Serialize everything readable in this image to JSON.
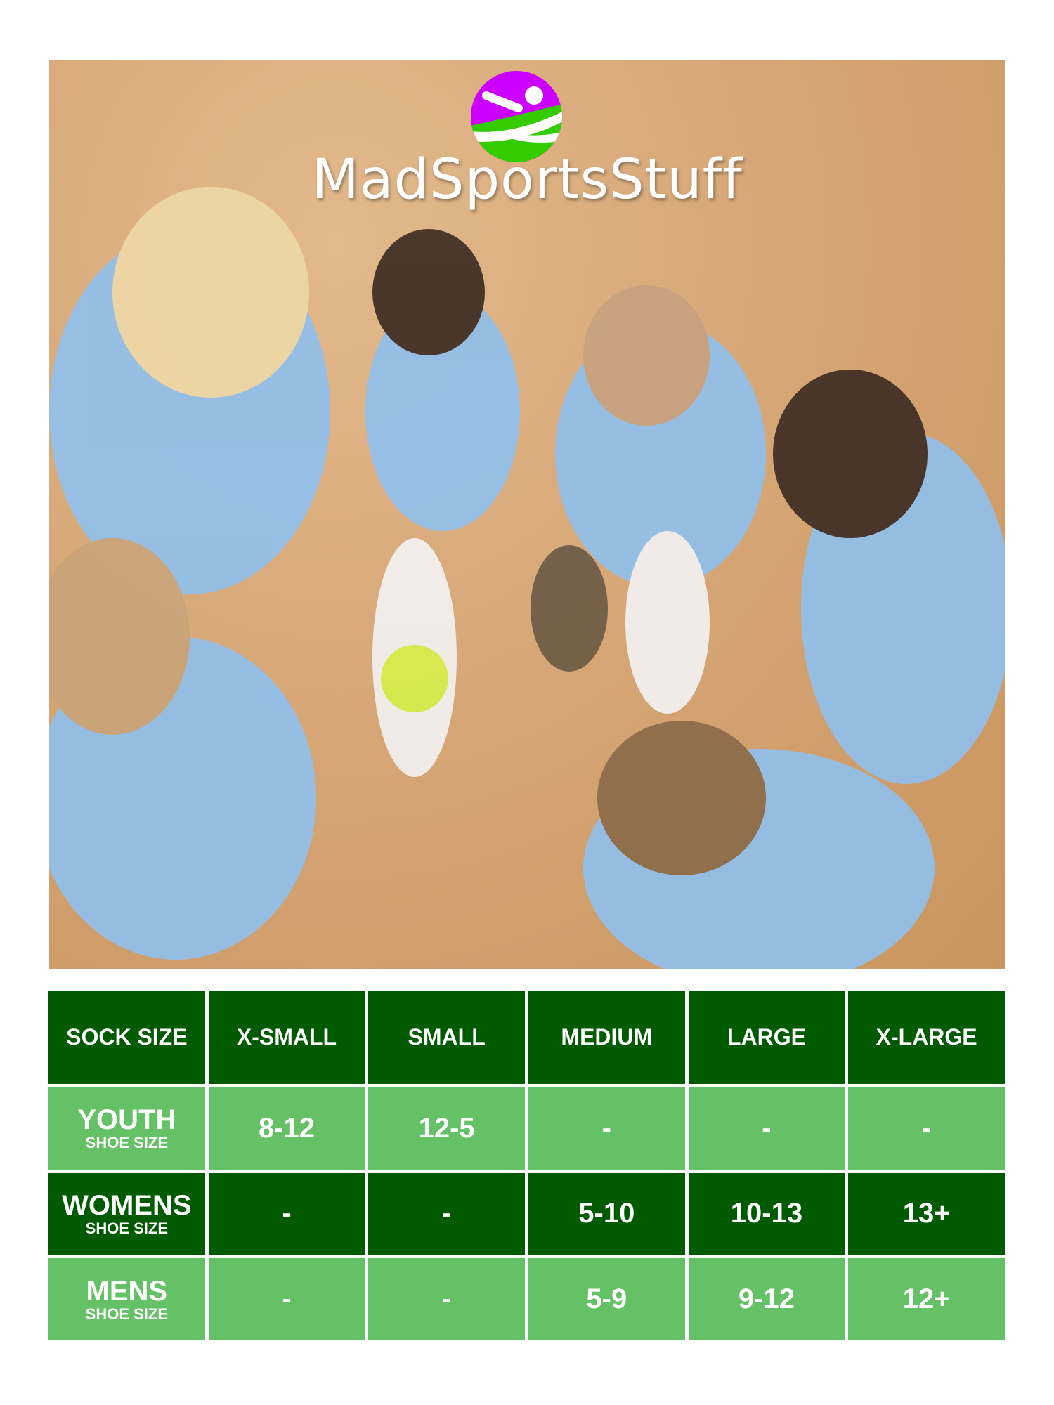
{
  "brand": {
    "name": "MadSportsStuff",
    "colors": {
      "purple": "#cc00ff",
      "green": "#33cc00"
    }
  },
  "photo": {
    "subject": "softball team huddle"
  },
  "size_chart": {
    "header": [
      "SOCK SIZE",
      "X-SMALL",
      "SMALL",
      "MEDIUM",
      "LARGE",
      "X-LARGE"
    ],
    "rows": [
      {
        "label": "YOUTH",
        "sublabel": "SHOE SIZE",
        "values": [
          "8-12",
          "12-5",
          "-",
          "-",
          "-"
        ]
      },
      {
        "label": "WOMENS",
        "sublabel": "SHOE SIZE",
        "values": [
          "-",
          "-",
          "5-10",
          "10-13",
          "13+"
        ]
      },
      {
        "label": "MENS",
        "sublabel": "SHOE SIZE",
        "values": [
          "-",
          "-",
          "5-9",
          "9-12",
          "12+"
        ]
      }
    ],
    "colors": {
      "dark": "#005a00",
      "light": "#65c165"
    }
  }
}
